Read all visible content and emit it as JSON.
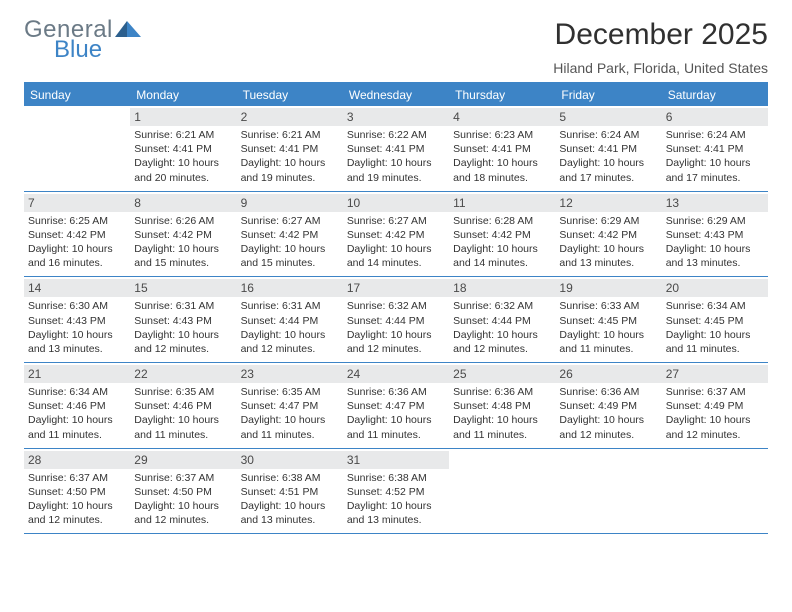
{
  "colors": {
    "accent": "#3d84c6",
    "header_text": "#ffffff",
    "date_bg": "#e8e9ea",
    "text": "#333333",
    "logo_gray": "#6b7a86",
    "logo_blue": "#3d84c6",
    "page_bg": "#ffffff"
  },
  "logo": {
    "line1": "General",
    "line2": "Blue"
  },
  "header": {
    "title": "December 2025",
    "location": "Hiland Park, Florida, United States"
  },
  "day_names": [
    "Sunday",
    "Monday",
    "Tuesday",
    "Wednesday",
    "Thursday",
    "Friday",
    "Saturday"
  ],
  "calendar": {
    "first_weekday_index": 1,
    "days": [
      {
        "n": 1,
        "sunrise": "6:21 AM",
        "sunset": "4:41 PM",
        "daylight": "10 hours and 20 minutes."
      },
      {
        "n": 2,
        "sunrise": "6:21 AM",
        "sunset": "4:41 PM",
        "daylight": "10 hours and 19 minutes."
      },
      {
        "n": 3,
        "sunrise": "6:22 AM",
        "sunset": "4:41 PM",
        "daylight": "10 hours and 19 minutes."
      },
      {
        "n": 4,
        "sunrise": "6:23 AM",
        "sunset": "4:41 PM",
        "daylight": "10 hours and 18 minutes."
      },
      {
        "n": 5,
        "sunrise": "6:24 AM",
        "sunset": "4:41 PM",
        "daylight": "10 hours and 17 minutes."
      },
      {
        "n": 6,
        "sunrise": "6:24 AM",
        "sunset": "4:41 PM",
        "daylight": "10 hours and 17 minutes."
      },
      {
        "n": 7,
        "sunrise": "6:25 AM",
        "sunset": "4:42 PM",
        "daylight": "10 hours and 16 minutes."
      },
      {
        "n": 8,
        "sunrise": "6:26 AM",
        "sunset": "4:42 PM",
        "daylight": "10 hours and 15 minutes."
      },
      {
        "n": 9,
        "sunrise": "6:27 AM",
        "sunset": "4:42 PM",
        "daylight": "10 hours and 15 minutes."
      },
      {
        "n": 10,
        "sunrise": "6:27 AM",
        "sunset": "4:42 PM",
        "daylight": "10 hours and 14 minutes."
      },
      {
        "n": 11,
        "sunrise": "6:28 AM",
        "sunset": "4:42 PM",
        "daylight": "10 hours and 14 minutes."
      },
      {
        "n": 12,
        "sunrise": "6:29 AM",
        "sunset": "4:42 PM",
        "daylight": "10 hours and 13 minutes."
      },
      {
        "n": 13,
        "sunrise": "6:29 AM",
        "sunset": "4:43 PM",
        "daylight": "10 hours and 13 minutes."
      },
      {
        "n": 14,
        "sunrise": "6:30 AM",
        "sunset": "4:43 PM",
        "daylight": "10 hours and 13 minutes."
      },
      {
        "n": 15,
        "sunrise": "6:31 AM",
        "sunset": "4:43 PM",
        "daylight": "10 hours and 12 minutes."
      },
      {
        "n": 16,
        "sunrise": "6:31 AM",
        "sunset": "4:44 PM",
        "daylight": "10 hours and 12 minutes."
      },
      {
        "n": 17,
        "sunrise": "6:32 AM",
        "sunset": "4:44 PM",
        "daylight": "10 hours and 12 minutes."
      },
      {
        "n": 18,
        "sunrise": "6:32 AM",
        "sunset": "4:44 PM",
        "daylight": "10 hours and 12 minutes."
      },
      {
        "n": 19,
        "sunrise": "6:33 AM",
        "sunset": "4:45 PM",
        "daylight": "10 hours and 11 minutes."
      },
      {
        "n": 20,
        "sunrise": "6:34 AM",
        "sunset": "4:45 PM",
        "daylight": "10 hours and 11 minutes."
      },
      {
        "n": 21,
        "sunrise": "6:34 AM",
        "sunset": "4:46 PM",
        "daylight": "10 hours and 11 minutes."
      },
      {
        "n": 22,
        "sunrise": "6:35 AM",
        "sunset": "4:46 PM",
        "daylight": "10 hours and 11 minutes."
      },
      {
        "n": 23,
        "sunrise": "6:35 AM",
        "sunset": "4:47 PM",
        "daylight": "10 hours and 11 minutes."
      },
      {
        "n": 24,
        "sunrise": "6:36 AM",
        "sunset": "4:47 PM",
        "daylight": "10 hours and 11 minutes."
      },
      {
        "n": 25,
        "sunrise": "6:36 AM",
        "sunset": "4:48 PM",
        "daylight": "10 hours and 11 minutes."
      },
      {
        "n": 26,
        "sunrise": "6:36 AM",
        "sunset": "4:49 PM",
        "daylight": "10 hours and 12 minutes."
      },
      {
        "n": 27,
        "sunrise": "6:37 AM",
        "sunset": "4:49 PM",
        "daylight": "10 hours and 12 minutes."
      },
      {
        "n": 28,
        "sunrise": "6:37 AM",
        "sunset": "4:50 PM",
        "daylight": "10 hours and 12 minutes."
      },
      {
        "n": 29,
        "sunrise": "6:37 AM",
        "sunset": "4:50 PM",
        "daylight": "10 hours and 12 minutes."
      },
      {
        "n": 30,
        "sunrise": "6:38 AM",
        "sunset": "4:51 PM",
        "daylight": "10 hours and 13 minutes."
      },
      {
        "n": 31,
        "sunrise": "6:38 AM",
        "sunset": "4:52 PM",
        "daylight": "10 hours and 13 minutes."
      }
    ]
  },
  "labels": {
    "sunrise": "Sunrise:",
    "sunset": "Sunset:",
    "daylight": "Daylight:"
  }
}
